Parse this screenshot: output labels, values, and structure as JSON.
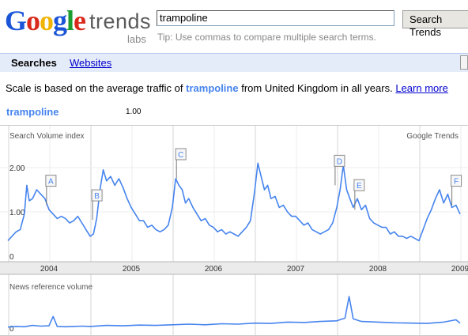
{
  "logo": {
    "letters": [
      "G",
      "o",
      "o",
      "g",
      "l",
      "e"
    ],
    "letter_colors": [
      "#1a55d8",
      "#d92a1d",
      "#f0b300",
      "#1a55d8",
      "#1b9e2f",
      "#d92a1d"
    ],
    "product": "trends",
    "tag": "labs"
  },
  "search": {
    "value": "trampoline",
    "button_label": "Search Trends",
    "tip": "Tip: Use commas to compare multiple search terms."
  },
  "tabs": {
    "active": "Searches",
    "link": "Websites"
  },
  "scale_note": {
    "prefix": "Scale is based on the average traffic of",
    "keyword": "trampoline",
    "suffix": "from United Kingdom in all years.",
    "learn_more": "Learn more"
  },
  "series": {
    "name": "trampoline",
    "average": "1.00"
  },
  "colors": {
    "line": "#4684ee",
    "grid": "#d6d6d6",
    "axis_band": "#ebebeb"
  },
  "chart_data": [
    {
      "type": "line",
      "title": "Search Volume index",
      "source_label": "Google Trends",
      "y_ticks": [
        "2.00",
        "1.00",
        "0"
      ],
      "ylim": [
        0,
        2.5
      ],
      "x_labels": [
        "2004",
        "2005",
        "2006",
        "2007",
        "2008",
        "2009"
      ],
      "x_unit": "years since start of 2004",
      "grid": true,
      "annotations": [
        {
          "label": "A",
          "x": 0.47,
          "y": 1.15
        },
        {
          "label": "B",
          "x": 1.03,
          "y": 0.82
        },
        {
          "label": "C",
          "x": 2.05,
          "y": 1.75
        },
        {
          "label": "D",
          "x": 3.98,
          "y": 1.6
        },
        {
          "label": "E",
          "x": 4.22,
          "y": 1.05
        },
        {
          "label": "F",
          "x": 5.4,
          "y": 1.15
        }
      ],
      "series": [
        {
          "name": "trampoline",
          "x": [
            0,
            0.05,
            0.1,
            0.15,
            0.2,
            0.23,
            0.26,
            0.3,
            0.35,
            0.4,
            0.45,
            0.5,
            0.55,
            0.6,
            0.65,
            0.7,
            0.75,
            0.8,
            0.85,
            0.9,
            0.95,
            1.0,
            1.04,
            1.08,
            1.12,
            1.16,
            1.2,
            1.25,
            1.3,
            1.35,
            1.4,
            1.45,
            1.5,
            1.55,
            1.6,
            1.65,
            1.7,
            1.75,
            1.8,
            1.85,
            1.9,
            1.95,
            2.0,
            2.04,
            2.08,
            2.12,
            2.16,
            2.2,
            2.25,
            2.3,
            2.35,
            2.4,
            2.45,
            2.5,
            2.55,
            2.6,
            2.65,
            2.7,
            2.75,
            2.8,
            2.85,
            2.9,
            2.95,
            3.0,
            3.04,
            3.08,
            3.12,
            3.16,
            3.2,
            3.25,
            3.3,
            3.35,
            3.4,
            3.45,
            3.5,
            3.55,
            3.6,
            3.65,
            3.7,
            3.75,
            3.8,
            3.85,
            3.9,
            3.95,
            4.0,
            4.04,
            4.08,
            4.12,
            4.16,
            4.2,
            4.25,
            4.3,
            4.35,
            4.4,
            4.45,
            4.5,
            4.55,
            4.6,
            4.65,
            4.7,
            4.75,
            4.8,
            4.85,
            4.9,
            4.95,
            5.0,
            5.05,
            5.1,
            5.15,
            5.2,
            5.25,
            5.3,
            5.35,
            5.4,
            5.45,
            5.5
          ],
          "values": [
            0.35,
            0.45,
            0.55,
            0.6,
            0.95,
            1.6,
            1.25,
            1.3,
            1.5,
            1.4,
            1.3,
            1.05,
            0.95,
            0.85,
            0.9,
            0.85,
            0.75,
            0.8,
            0.9,
            0.75,
            0.6,
            0.45,
            0.5,
            0.85,
            1.5,
            1.95,
            1.7,
            1.8,
            1.6,
            1.75,
            1.55,
            1.3,
            1.1,
            0.95,
            0.8,
            0.8,
            0.65,
            0.7,
            0.6,
            0.55,
            0.6,
            0.7,
            1.1,
            1.75,
            1.6,
            1.5,
            1.2,
            1.3,
            1.1,
            0.95,
            0.8,
            0.85,
            0.7,
            0.65,
            0.55,
            0.6,
            0.5,
            0.55,
            0.5,
            0.45,
            0.55,
            0.65,
            0.8,
            1.45,
            2.1,
            1.8,
            1.5,
            1.6,
            1.3,
            1.35,
            1.1,
            1.15,
            1.0,
            0.9,
            0.9,
            0.8,
            0.7,
            0.75,
            0.6,
            0.55,
            0.5,
            0.55,
            0.6,
            0.75,
            1.1,
            1.5,
            2.05,
            1.5,
            1.3,
            1.1,
            1.3,
            1.05,
            1.15,
            0.85,
            0.75,
            0.7,
            0.65,
            0.65,
            0.5,
            0.55,
            0.45,
            0.45,
            0.4,
            0.45,
            0.4,
            0.35,
            0.6,
            0.85,
            1.05,
            1.3,
            1.5,
            1.2,
            1.4,
            1.1,
            1.15,
            0.95
          ]
        }
      ]
    },
    {
      "type": "line",
      "title": "News reference volume",
      "y_ticks": [
        "0"
      ],
      "x_unit": "years since start of 2004",
      "series": [
        {
          "name": "news",
          "x": [
            0,
            0.1,
            0.2,
            0.3,
            0.4,
            0.5,
            0.55,
            0.6,
            0.7,
            0.8,
            0.9,
            1.0,
            1.2,
            1.4,
            1.6,
            1.8,
            2.0,
            2.2,
            2.4,
            2.6,
            2.8,
            3.0,
            3.2,
            3.4,
            3.6,
            3.8,
            4.0,
            4.1,
            4.15,
            4.2,
            4.3,
            4.5,
            4.7,
            4.9,
            5.1,
            5.3,
            5.45,
            5.5
          ],
          "values": [
            0.03,
            0.05,
            0.04,
            0.08,
            0.06,
            0.07,
            0.35,
            0.05,
            0.04,
            0.05,
            0.06,
            0.05,
            0.08,
            0.07,
            0.09,
            0.08,
            0.1,
            0.12,
            0.1,
            0.13,
            0.12,
            0.15,
            0.14,
            0.18,
            0.17,
            0.2,
            0.22,
            0.3,
            0.95,
            0.28,
            0.2,
            0.18,
            0.16,
            0.15,
            0.14,
            0.18,
            0.25,
            0.15
          ]
        }
      ]
    }
  ]
}
